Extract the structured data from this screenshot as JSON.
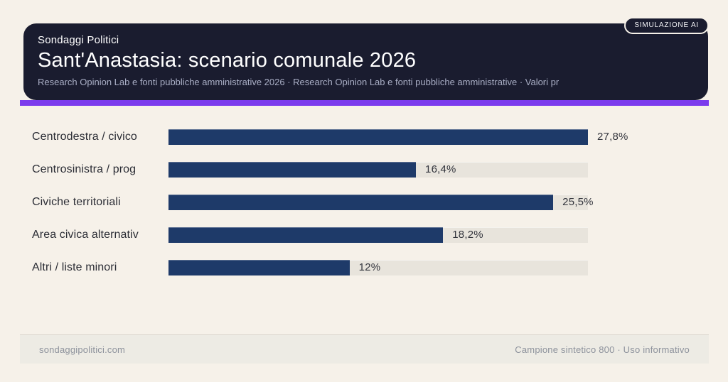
{
  "badge": {
    "label": "SIMULAZIONE AI"
  },
  "header": {
    "kicker": "Sondaggi Politici",
    "title": "Sant'Anastasia: scenario comunale 2026",
    "subtitle": "Research Opinion Lab e fonti pubbliche amministrative 2026 · Research Opinion Lab e fonti pubbliche amministrative · Valori pr"
  },
  "chart_data": {
    "type": "bar",
    "orientation": "horizontal",
    "title": "Sant'Anastasia: scenario comunale 2026",
    "categories": [
      "Centrodestra / civico",
      "Centrosinistra / prog",
      "Civiche territoriali",
      "Area civica alternativ",
      "Altri / liste minori"
    ],
    "values": [
      27.8,
      16.4,
      25.5,
      18.2,
      12
    ],
    "value_labels": [
      "27,8%",
      "16,4%",
      "25,5%",
      "18,2%",
      "12%"
    ],
    "xlim": [
      0,
      27.8
    ],
    "grid": false,
    "legend": false,
    "bar_color": "#1e3a69",
    "track_color": "#e8e4dc"
  },
  "footer": {
    "left": "sondaggipolitici.com",
    "right": "Campione sintetico 800 · Uso informativo"
  },
  "colors": {
    "page_bg": "#f6f1e9",
    "header_bg": "#1a1c2f",
    "accent": "#7b3bed",
    "bar": "#1e3a69",
    "track": "#e8e4dc"
  }
}
